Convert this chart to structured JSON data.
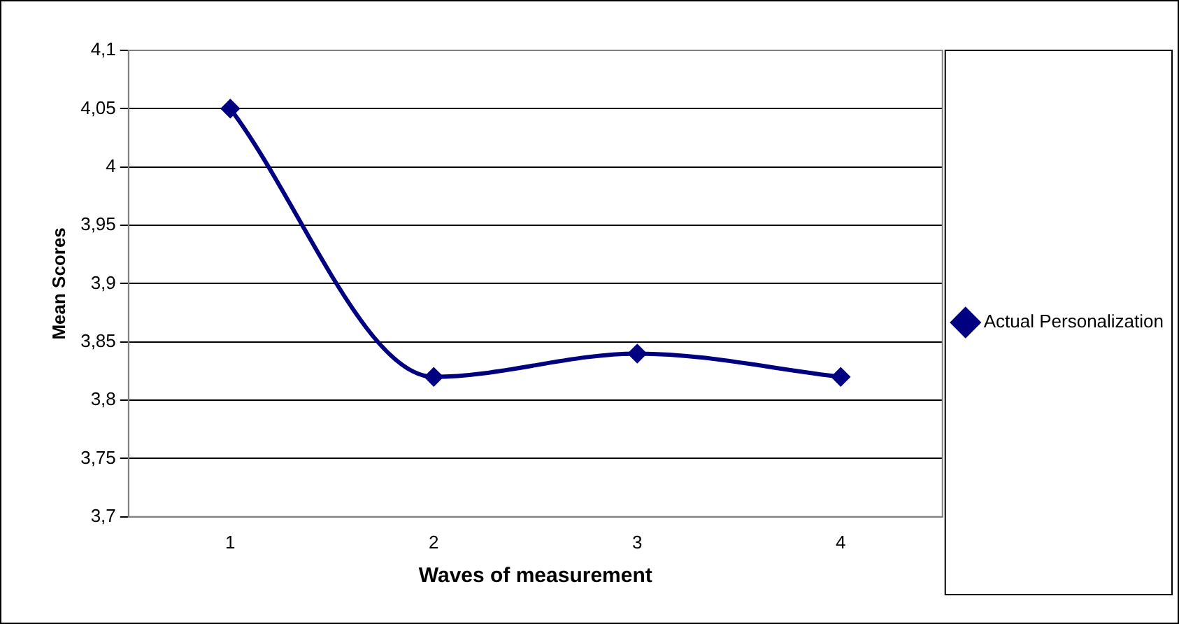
{
  "chart_data": {
    "type": "line",
    "xlabel": "Waves of measurement",
    "ylabel": "Mean Scores",
    "categories": [
      "1",
      "2",
      "3",
      "4"
    ],
    "series": [
      {
        "name": "Actual Personalization",
        "color": "#000080",
        "values": [
          4.05,
          3.82,
          3.84,
          3.82
        ]
      }
    ],
    "ylim": [
      3.7,
      4.1
    ],
    "yticks": [
      {
        "value": 3.7,
        "label": "3,7"
      },
      {
        "value": 3.75,
        "label": "3,75"
      },
      {
        "value": 3.8,
        "label": "3,8"
      },
      {
        "value": 3.85,
        "label": "3,85"
      },
      {
        "value": 3.9,
        "label": "3,9"
      },
      {
        "value": 3.95,
        "label": "3,95"
      },
      {
        "value": 4,
        "label": "4"
      },
      {
        "value": 4.05,
        "label": "4,05"
      },
      {
        "value": 4.1,
        "label": "4,1"
      }
    ],
    "grid": "y",
    "legend": "right",
    "marker": "diamond",
    "line_style": "solid"
  }
}
